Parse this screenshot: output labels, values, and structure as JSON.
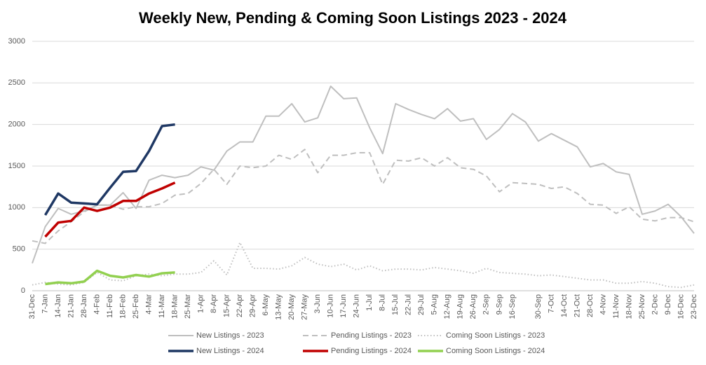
{
  "chart_data": {
    "type": "line",
    "title": "Weekly New, Pending & Coming Soon Listings 2023 - 2024",
    "categories": [
      "31-Dec",
      "7-Jan",
      "14-Jan",
      "21-Jan",
      "28-Jan",
      "4-Feb",
      "11-Feb",
      "18-Feb",
      "25-Feb",
      "4-Mar",
      "11-Mar",
      "18-Mar",
      "25-Mar",
      "1-Apr",
      "8-Apr",
      "15-Apr",
      "22-Apr",
      "29-Apr",
      "6-May",
      "13-May",
      "20-May",
      "27-May",
      "3-Jun",
      "10-Jun",
      "17-Jun",
      "24-Jun",
      "1-Jul",
      "8-Jul",
      "15-Jul",
      "22-Jul",
      "29-Jul",
      "5-Aug",
      "12-Aug",
      "19-Aug",
      "26-Aug",
      "2-Sep",
      "9-Sep",
      "16-Sep",
      null,
      "30-Sep",
      "7-Oct",
      "14-Oct",
      "21-Oct",
      "28-Oct",
      "4-Nov",
      "11-Nov",
      "18-Nov",
      "25-Nov",
      "2-Dec",
      "9-Dec",
      "16-Dec",
      "23-Dec"
    ],
    "ylim": [
      0,
      3000
    ],
    "yticks": [
      0,
      500,
      1000,
      1500,
      2000,
      2500,
      3000
    ],
    "grid": true,
    "legend": "bottom",
    "series": [
      {
        "name": "New Listings - 2023",
        "color": "#bfbfbf",
        "dash": "solid",
        "width": 2,
        "values": [
          330,
          770,
          990,
          920,
          960,
          1030,
          1030,
          1180,
          990,
          1330,
          1390,
          1360,
          1390,
          1490,
          1450,
          1680,
          1790,
          1790,
          2100,
          2100,
          2250,
          2030,
          2080,
          2460,
          2310,
          2320,
          1960,
          1650,
          2250,
          2180,
          2120,
          2070,
          2190,
          2040,
          2070,
          1820,
          1940,
          2130,
          2030,
          1800,
          1890,
          1810,
          1730,
          1490,
          1530,
          1430,
          1400,
          920,
          960,
          1040,
          890,
          690
        ]
      },
      {
        "name": "Pending Listings - 2023",
        "color": "#bfbfbf",
        "dash": "dashed",
        "width": 2,
        "values": [
          600,
          570,
          720,
          830,
          950,
          1030,
          1030,
          980,
          1010,
          1010,
          1050,
          1150,
          1170,
          1290,
          1460,
          1280,
          1500,
          1480,
          1500,
          1630,
          1580,
          1700,
          1420,
          1630,
          1630,
          1660,
          1660,
          1280,
          1570,
          1560,
          1600,
          1500,
          1600,
          1480,
          1460,
          1380,
          1190,
          1300,
          1290,
          1280,
          1230,
          1250,
          1170,
          1040,
          1030,
          930,
          1010,
          860,
          840,
          880,
          880,
          830
        ]
      },
      {
        "name": "Coming Soon Listings - 2023",
        "color": "#bfbfbf",
        "dash": "dotted",
        "width": 2,
        "values": [
          70,
          100,
          80,
          70,
          100,
          220,
          130,
          120,
          180,
          200,
          180,
          200,
          200,
          220,
          360,
          190,
          580,
          270,
          270,
          260,
          300,
          400,
          320,
          290,
          320,
          250,
          300,
          240,
          260,
          260,
          250,
          280,
          260,
          240,
          210,
          270,
          220,
          210,
          200,
          180,
          190,
          170,
          150,
          130,
          130,
          90,
          90,
          110,
          90,
          50,
          40,
          70
        ]
      },
      {
        "name": "New Listings - 2024",
        "color": "#1f3864",
        "dash": "solid",
        "width": 3.5,
        "values": [
          null,
          910,
          1170,
          1060,
          1050,
          1040,
          1240,
          1430,
          1440,
          1680,
          1980,
          2000,
          null,
          null,
          null,
          null,
          null,
          null,
          null,
          null,
          null,
          null,
          null,
          null,
          null,
          null,
          null,
          null,
          null,
          null,
          null,
          null,
          null,
          null,
          null,
          null,
          null,
          null,
          null,
          null,
          null,
          null,
          null,
          null,
          null,
          null,
          null,
          null,
          null,
          null,
          null,
          null
        ]
      },
      {
        "name": "Pending Listings - 2024",
        "color": "#c00000",
        "dash": "solid",
        "width": 3.5,
        "values": [
          null,
          650,
          820,
          840,
          1000,
          960,
          1000,
          1080,
          1080,
          1170,
          1230,
          1300,
          null,
          null,
          null,
          null,
          null,
          null,
          null,
          null,
          null,
          null,
          null,
          null,
          null,
          null,
          null,
          null,
          null,
          null,
          null,
          null,
          null,
          null,
          null,
          null,
          null,
          null,
          null,
          null,
          null,
          null,
          null,
          null,
          null,
          null,
          null,
          null,
          null,
          null,
          null,
          null
        ]
      },
      {
        "name": "Coming Soon Listings - 2024",
        "color": "#92d050",
        "dash": "solid",
        "width": 3.5,
        "values": [
          null,
          80,
          100,
          90,
          110,
          240,
          180,
          160,
          190,
          170,
          210,
          220,
          null,
          null,
          null,
          null,
          null,
          null,
          null,
          null,
          null,
          null,
          null,
          null,
          null,
          null,
          null,
          null,
          null,
          null,
          null,
          null,
          null,
          null,
          null,
          null,
          null,
          null,
          null,
          null,
          null,
          null,
          null,
          null,
          null,
          null,
          null,
          null,
          null,
          null,
          null,
          null
        ]
      }
    ]
  }
}
